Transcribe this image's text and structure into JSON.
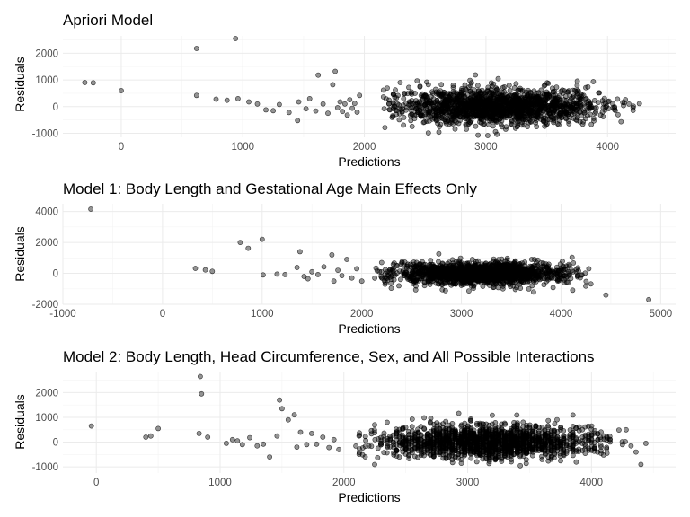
{
  "colors": {
    "point_fill": "#000000",
    "grid": "#ebebeb",
    "background": "#ffffff"
  },
  "chart_data": [
    {
      "type": "scatter",
      "title": "Apriori Model",
      "xlabel": "Predictions",
      "ylabel": "Residuals",
      "xlim": [
        -480,
        4560
      ],
      "ylim": [
        -1150,
        2650
      ],
      "xticks": [
        0,
        1000,
        2000,
        3000,
        4000
      ],
      "xtick_labels": [
        "0",
        "1000",
        "2000",
        "3000",
        "4000"
      ],
      "yticks": [
        -1000,
        0,
        1000,
        2000
      ],
      "ytick_labels": [
        "-1000",
        "0",
        "1000",
        "2000"
      ],
      "grid": true,
      "cloud": {
        "center_x": 3100,
        "spread_x": 420,
        "min_x": 2100,
        "max_x": 4300,
        "spread_y": 330,
        "n": 1700
      },
      "points": [
        [
          -300,
          900
        ],
        [
          -230,
          890
        ],
        [
          0,
          600
        ],
        [
          620,
          2180
        ],
        [
          940,
          2550
        ],
        [
          620,
          420
        ],
        [
          780,
          280
        ],
        [
          870,
          240
        ],
        [
          960,
          300
        ],
        [
          1050,
          180
        ],
        [
          1120,
          100
        ],
        [
          1190,
          -120
        ],
        [
          1250,
          -150
        ],
        [
          1300,
          80
        ],
        [
          1380,
          -220
        ],
        [
          1450,
          -520
        ],
        [
          1460,
          180
        ],
        [
          1520,
          -80
        ],
        [
          1550,
          300
        ],
        [
          1600,
          -160
        ],
        [
          1620,
          1180
        ],
        [
          1660,
          100
        ],
        [
          1700,
          -250
        ],
        [
          1740,
          820
        ],
        [
          1760,
          1320
        ],
        [
          1780,
          -40
        ],
        [
          1800,
          180
        ],
        [
          1820,
          -180
        ],
        [
          1840,
          100
        ],
        [
          1860,
          -320
        ],
        [
          1880,
          260
        ],
        [
          1900,
          -60
        ],
        [
          1920,
          120
        ],
        [
          1940,
          -210
        ],
        [
          1960,
          420
        ]
      ]
    },
    {
      "type": "scatter",
      "title": "Model 1: Body Length and Gestational Age Main Effects Only",
      "xlabel": "Predictions",
      "ylabel": "Residuals",
      "xlim": [
        -1000,
        5150
      ],
      "ylim": [
        -2000,
        4500
      ],
      "xticks": [
        -1000,
        0,
        1000,
        2000,
        3000,
        4000,
        5000
      ],
      "xtick_labels": [
        "-1000",
        "0",
        "1000",
        "2000",
        "3000",
        "4000",
        "5000"
      ],
      "yticks": [
        -2000,
        0,
        2000,
        4000
      ],
      "ytick_labels": [
        "-2000",
        "0",
        "2000",
        "4000"
      ],
      "grid": true,
      "cloud": {
        "center_x": 3200,
        "spread_x": 420,
        "min_x": 2100,
        "max_x": 4300,
        "spread_y": 340,
        "n": 1700
      },
      "points": [
        [
          -720,
          4150
        ],
        [
          330,
          320
        ],
        [
          430,
          220
        ],
        [
          500,
          130
        ],
        [
          780,
          2000
        ],
        [
          860,
          1620
        ],
        [
          1000,
          2200
        ],
        [
          1010,
          -100
        ],
        [
          1150,
          -50
        ],
        [
          1230,
          -80
        ],
        [
          1350,
          380
        ],
        [
          1380,
          1400
        ],
        [
          1420,
          -200
        ],
        [
          1460,
          -350
        ],
        [
          1500,
          100
        ],
        [
          1560,
          -80
        ],
        [
          1620,
          420
        ],
        [
          1700,
          1200
        ],
        [
          1720,
          -500
        ],
        [
          1760,
          200
        ],
        [
          1800,
          -150
        ],
        [
          1850,
          900
        ],
        [
          1900,
          -300
        ],
        [
          1950,
          300
        ],
        [
          2000,
          -500
        ],
        [
          4200,
          -120
        ],
        [
          4300,
          -680
        ],
        [
          4450,
          -1400
        ],
        [
          4880,
          -1700
        ]
      ]
    },
    {
      "type": "scatter",
      "title": "Model 2: Body Length, Head Circumference, Sex, and All Possible Interactions",
      "xlabel": "Predictions",
      "ylabel": "Residuals",
      "xlim": [
        -270,
        4680
      ],
      "ylim": [
        -1250,
        2850
      ],
      "xticks": [
        0,
        1000,
        2000,
        3000,
        4000
      ],
      "xtick_labels": [
        "0",
        "1000",
        "2000",
        "3000",
        "4000"
      ],
      "yticks": [
        -1000,
        0,
        1000,
        2000
      ],
      "ytick_labels": [
        "-1000",
        "0",
        "1000",
        "2000"
      ],
      "grid": true,
      "cloud": {
        "center_x": 3150,
        "spread_x": 430,
        "min_x": 2100,
        "max_x": 4300,
        "spread_y": 330,
        "n": 1700
      },
      "points": [
        [
          -40,
          650
        ],
        [
          400,
          200
        ],
        [
          440,
          250
        ],
        [
          500,
          550
        ],
        [
          830,
          350
        ],
        [
          840,
          2650
        ],
        [
          850,
          1950
        ],
        [
          900,
          200
        ],
        [
          1050,
          -50
        ],
        [
          1100,
          100
        ],
        [
          1140,
          50
        ],
        [
          1180,
          -100
        ],
        [
          1240,
          180
        ],
        [
          1300,
          -150
        ],
        [
          1350,
          -80
        ],
        [
          1400,
          -600
        ],
        [
          1460,
          250
        ],
        [
          1480,
          1700
        ],
        [
          1500,
          1350
        ],
        [
          1550,
          900
        ],
        [
          1600,
          1100
        ],
        [
          1620,
          -200
        ],
        [
          1650,
          400
        ],
        [
          1700,
          -100
        ],
        [
          1740,
          350
        ],
        [
          1780,
          -80
        ],
        [
          1830,
          200
        ],
        [
          1880,
          -220
        ],
        [
          1920,
          100
        ],
        [
          1960,
          -300
        ],
        [
          4250,
          -100
        ],
        [
          4280,
          500
        ],
        [
          4320,
          -150
        ],
        [
          4360,
          -400
        ],
        [
          4400,
          -900
        ],
        [
          4440,
          -50
        ]
      ]
    }
  ]
}
